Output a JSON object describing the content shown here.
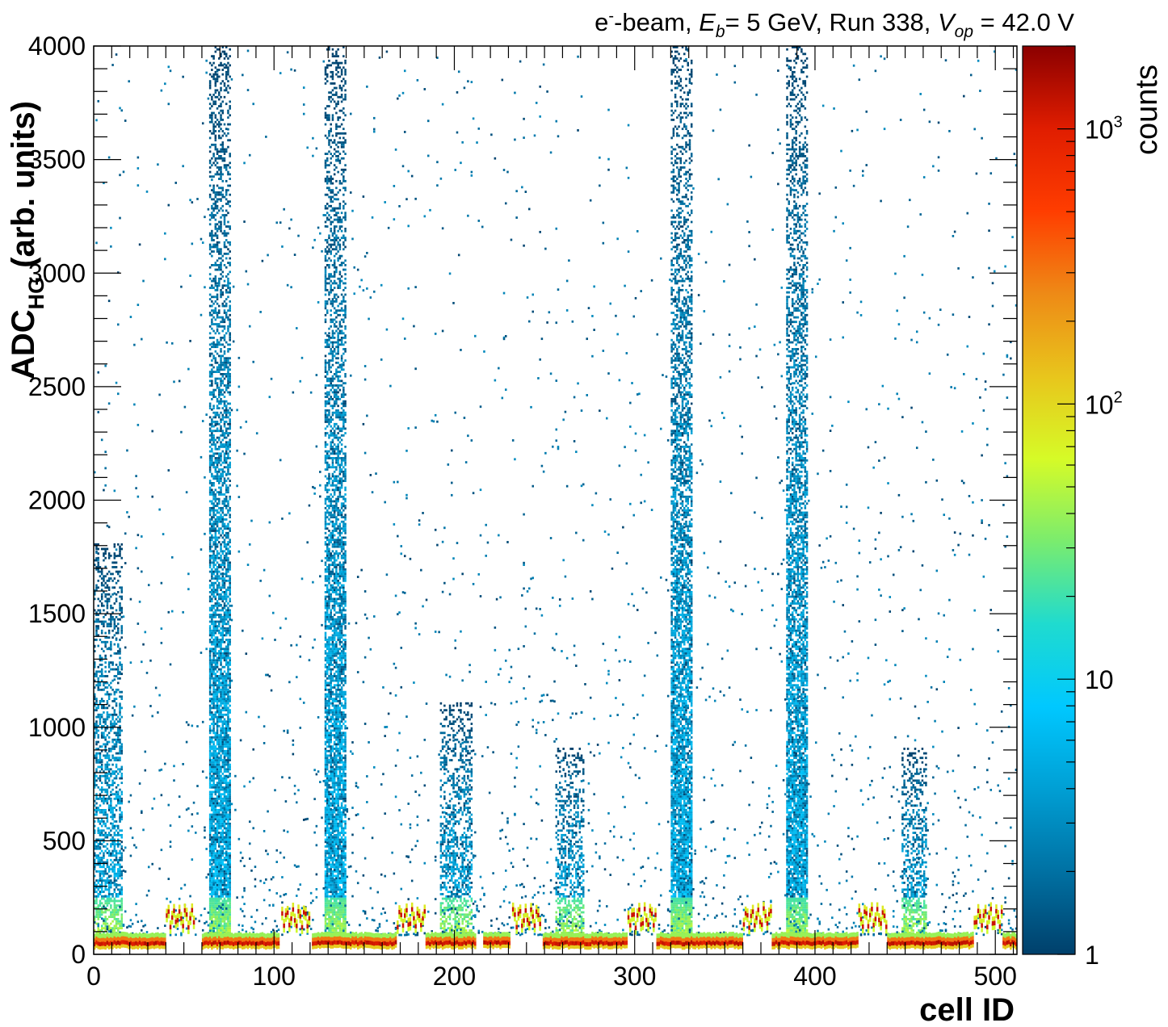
{
  "chart_data": {
    "type": "heatmap",
    "title": {
      "pre": "e",
      "sup": "-",
      "part1": "-beam, ",
      "Eb_sym": "E",
      "Eb_sub": "b",
      "part2": "= 5 GeV, Run 338, ",
      "V_sym": "V",
      "V_sub": "op",
      "part3": " = 42.0 V"
    },
    "xlabel": "cell ID",
    "ylabel": {
      "main": "ADC",
      "sub": "HG",
      "rest": " (arb. units)"
    },
    "zlabel": "counts",
    "xlim": [
      0,
      512
    ],
    "ylim": [
      0,
      4000
    ],
    "zlim": [
      1,
      2000
    ],
    "z_scale": "log",
    "x_ticks": [
      0,
      100,
      200,
      300,
      400,
      500
    ],
    "y_ticks": [
      0,
      500,
      1000,
      1500,
      2000,
      2500,
      3000,
      3500,
      4000
    ],
    "z_ticks": [
      {
        "value": 1,
        "base": "1",
        "exp": ""
      },
      {
        "value": 10,
        "base": "10",
        "exp": ""
      },
      {
        "value": 100,
        "base": "10",
        "exp": "2"
      },
      {
        "value": 1000,
        "base": "10",
        "exp": "3"
      }
    ],
    "colorscale": [
      "#00406b",
      "#0071a3",
      "#009fd4",
      "#00c8ff",
      "#1fdbcf",
      "#7aec6e",
      "#d6fb27",
      "#e8c51c",
      "#ee8a16",
      "#ff3d00",
      "#e01d00",
      "#8b0000"
    ],
    "pedestal_adc_approx": 50,
    "regions": [
      {
        "cell_range": [
          0,
          16
        ],
        "max_adc_approx": 1800
      },
      {
        "cell_range": [
          64,
          76
        ],
        "max_adc_approx": 4000
      },
      {
        "cell_range": [
          128,
          140
        ],
        "max_adc_approx": 4000
      },
      {
        "cell_range": [
          192,
          210
        ],
        "max_adc_approx": 1100
      },
      {
        "cell_range": [
          256,
          272
        ],
        "max_adc_approx": 900
      },
      {
        "cell_range": [
          320,
          332
        ],
        "max_adc_approx": 4000
      },
      {
        "cell_range": [
          384,
          396
        ],
        "max_adc_approx": 4000
      },
      {
        "cell_range": [
          448,
          462
        ],
        "max_adc_approx": 900
      }
    ],
    "pedestal_segments": [
      {
        "cell_range": [
          0,
          40
        ]
      },
      {
        "cell_range": [
          60,
          103
        ]
      },
      {
        "cell_range": [
          121,
          168
        ]
      },
      {
        "cell_range": [
          184,
          212
        ]
      },
      {
        "cell_range": [
          216,
          231
        ]
      },
      {
        "cell_range": [
          249,
          296
        ]
      },
      {
        "cell_range": [
          312,
          360
        ]
      },
      {
        "cell_range": [
          376,
          424
        ]
      },
      {
        "cell_range": [
          440,
          488
        ]
      },
      {
        "cell_range": [
          504,
          512
        ]
      }
    ],
    "zigzag_segments": [
      {
        "cell_range": [
          40,
          56
        ]
      },
      {
        "cell_range": [
          104,
          120
        ]
      },
      {
        "cell_range": [
          168,
          184
        ]
      },
      {
        "cell_range": [
          232,
          248
        ]
      },
      {
        "cell_range": [
          296,
          312
        ]
      },
      {
        "cell_range": [
          360,
          376
        ]
      },
      {
        "cell_range": [
          424,
          440
        ]
      },
      {
        "cell_range": [
          488,
          504
        ]
      }
    ]
  }
}
